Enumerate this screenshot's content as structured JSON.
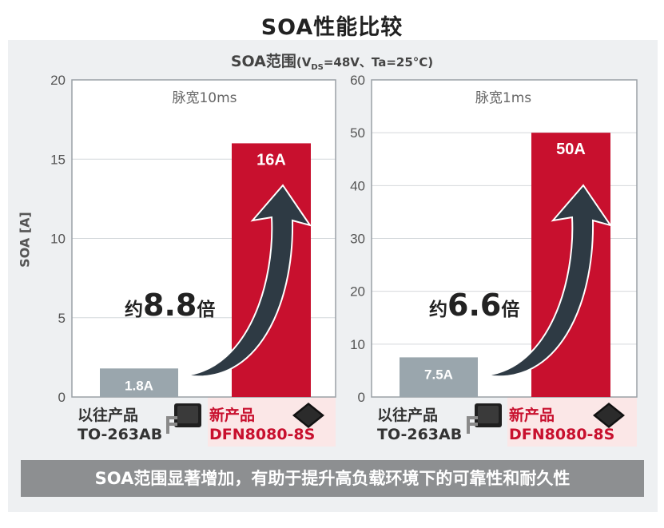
{
  "title": "SOA性能比较",
  "subtitle": {
    "main": "SOA范围",
    "condition_open": "(V",
    "condition_sub": "DS",
    "condition_rest": "=48V、Ta=25°C)"
  },
  "colors": {
    "old_bar": "#9aa6ad",
    "new_bar": "#c8102e",
    "arrow": "#2e3a44",
    "new_label_bg": "#fbe7e7",
    "banner_bg": "#8d8f91"
  },
  "chart_data": [
    {
      "type": "bar",
      "title": "脉宽10ms",
      "ylabel": "SOA [A]",
      "ylim": [
        0,
        20
      ],
      "yticks": [
        0,
        5,
        10,
        15,
        20
      ],
      "categories": [
        "以往产品 TO-263AB",
        "新产品 DFN8080-8S"
      ],
      "values": [
        1.8,
        16
      ],
      "value_labels": [
        "1.8A",
        "16A"
      ],
      "ratio": {
        "prefix": "约",
        "value": "8.8",
        "suffix": "倍"
      }
    },
    {
      "type": "bar",
      "title": "脉宽1ms",
      "ylabel": "",
      "ylim": [
        0,
        60
      ],
      "yticks": [
        0,
        10,
        20,
        30,
        40,
        50,
        60
      ],
      "categories": [
        "以往产品 TO-263AB",
        "新产品 DFN8080-8S"
      ],
      "values": [
        7.5,
        50
      ],
      "value_labels": [
        "7.5A",
        "50A"
      ],
      "ratio": {
        "prefix": "约",
        "value": "6.6",
        "suffix": "倍"
      }
    }
  ],
  "products": {
    "old": {
      "label": "以往产品",
      "package": "TO-263AB"
    },
    "new": {
      "label": "新产品",
      "package": "DFN8080-8S"
    }
  },
  "banner": "SOA范围显著增加，有助于提升高负载环境下的可靠性和耐久性"
}
